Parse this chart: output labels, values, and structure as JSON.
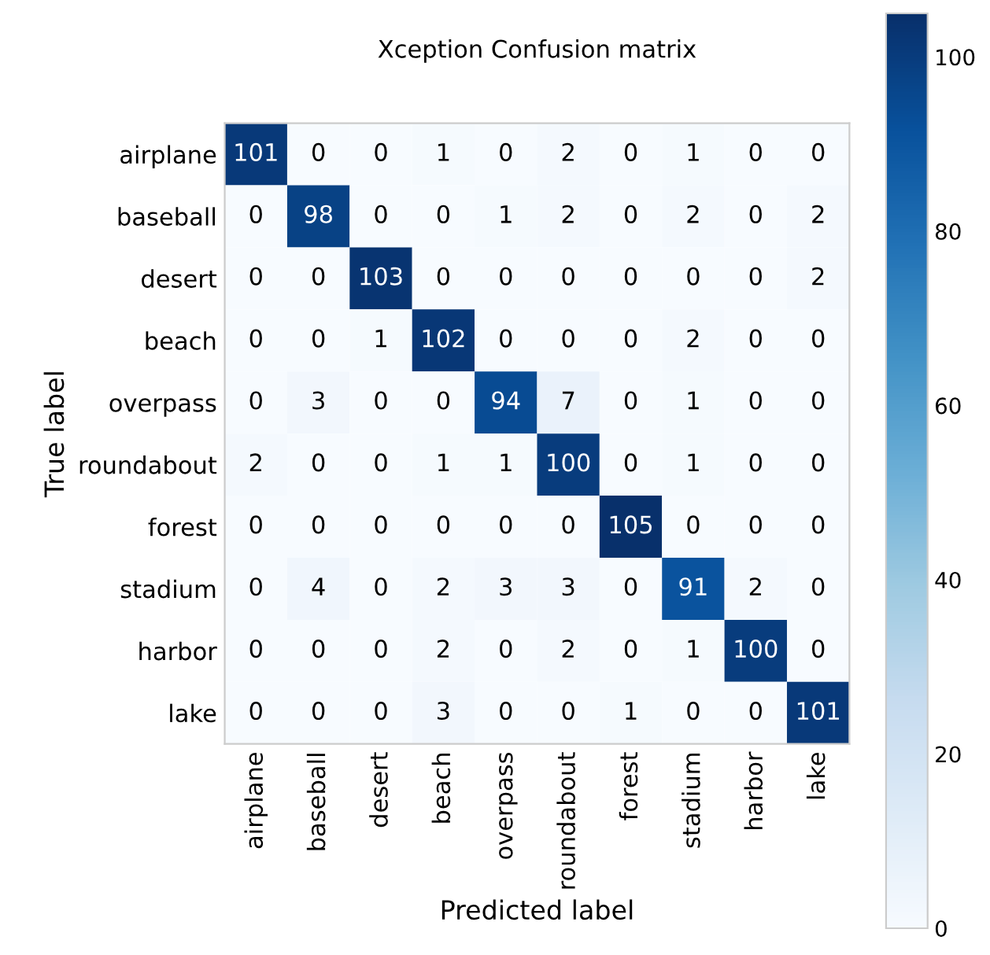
{
  "chart_data": {
    "type": "heatmap",
    "title": "Xception Confusion matrix",
    "xlabel": "Predicted label",
    "ylabel": "True label",
    "categories": [
      "airplane",
      "baseball",
      "desert",
      "beach",
      "overpass",
      "roundabout",
      "forest",
      "stadium",
      "harbor",
      "lake"
    ],
    "y_categories": [
      "airplane",
      "baseball",
      "desert",
      "beach",
      "overpass",
      "roundabout",
      "forest",
      "stadium",
      "harbor",
      "lake"
    ],
    "cells": [
      [
        101,
        0,
        0,
        1,
        0,
        2,
        0,
        1,
        0,
        0
      ],
      [
        0,
        98,
        0,
        0,
        1,
        2,
        0,
        2,
        0,
        2
      ],
      [
        0,
        0,
        103,
        0,
        0,
        0,
        0,
        0,
        0,
        2
      ],
      [
        0,
        0,
        1,
        102,
        0,
        0,
        0,
        2,
        0,
        0
      ],
      [
        0,
        3,
        0,
        0,
        94,
        7,
        0,
        1,
        0,
        0
      ],
      [
        2,
        0,
        0,
        1,
        1,
        100,
        0,
        1,
        0,
        0
      ],
      [
        0,
        0,
        0,
        0,
        0,
        0,
        105,
        0,
        0,
        0
      ],
      [
        0,
        4,
        0,
        2,
        3,
        3,
        0,
        91,
        2,
        0
      ],
      [
        0,
        0,
        0,
        2,
        0,
        2,
        0,
        1,
        100,
        0
      ],
      [
        0,
        0,
        0,
        3,
        0,
        0,
        1,
        0,
        0,
        101
      ]
    ],
    "clim": [
      0,
      105
    ],
    "cticks": [
      0,
      20,
      40,
      60,
      80,
      100
    ],
    "data_labels": true
  }
}
